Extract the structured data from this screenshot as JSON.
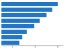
{
  "chart_data": {
    "type": "bar",
    "orientation": "horizontal",
    "categories": [
      null,
      null,
      null,
      null,
      null,
      null,
      null,
      null
    ],
    "values": [
      100,
      90,
      80,
      68,
      58,
      45,
      37,
      32
    ],
    "color": "#2176c7",
    "xlim": [
      0,
      110
    ],
    "xticks": [
      0,
      20,
      40,
      60,
      80,
      100
    ],
    "tick_labels": false,
    "grid": false
  }
}
